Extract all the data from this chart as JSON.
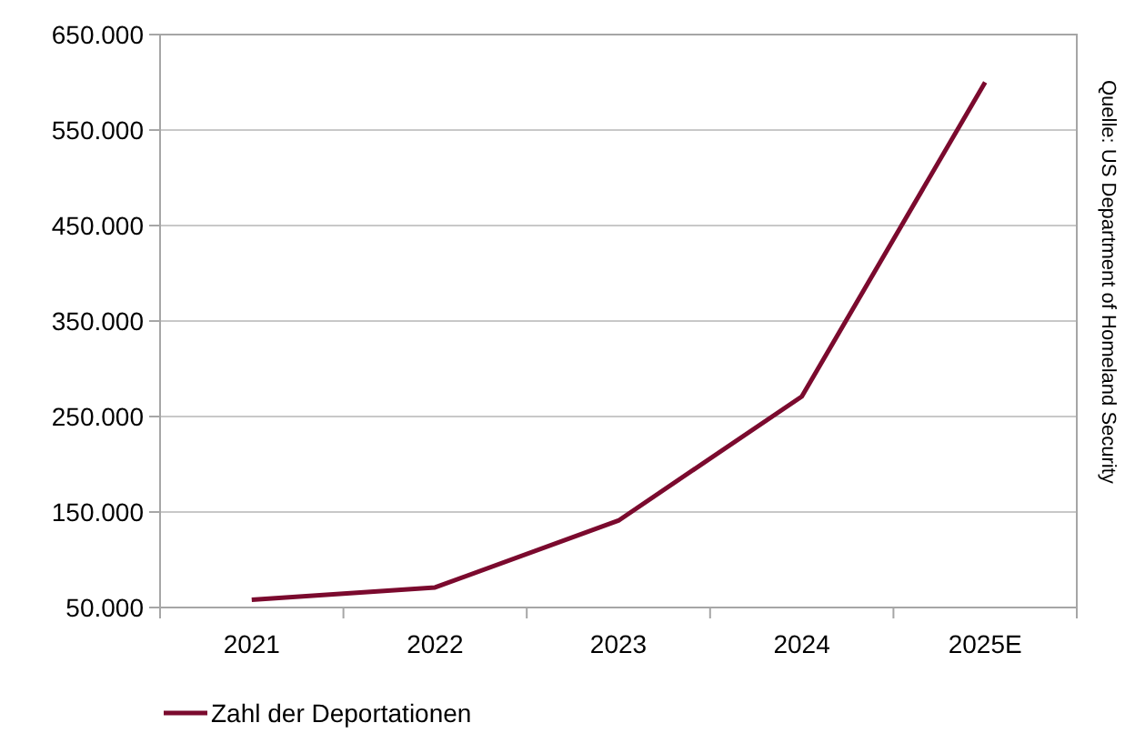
{
  "chart_data": {
    "type": "line",
    "categories": [
      "2021",
      "2022",
      "2023",
      "2024",
      "2025E"
    ],
    "series": [
      {
        "name": "Zahl der Deportationen",
        "color": "#7b0a2e",
        "values": [
          58000,
          71000,
          141000,
          271000,
          600000
        ]
      }
    ],
    "ylim": [
      50000,
      650000
    ],
    "yticks": [
      {
        "value": 50000,
        "label": "50.000"
      },
      {
        "value": 150000,
        "label": "150.000"
      },
      {
        "value": 250000,
        "label": "250.000"
      },
      {
        "value": 350000,
        "label": "350.000"
      },
      {
        "value": 450000,
        "label": "450.000"
      },
      {
        "value": 550000,
        "label": "550.000"
      },
      {
        "value": 650000,
        "label": "650.000"
      }
    ],
    "grid": "y",
    "legend": "bottom",
    "line_style": "solid",
    "marker": "none",
    "annotations": [
      "Quelle: US Department of Homeland Security"
    ]
  }
}
